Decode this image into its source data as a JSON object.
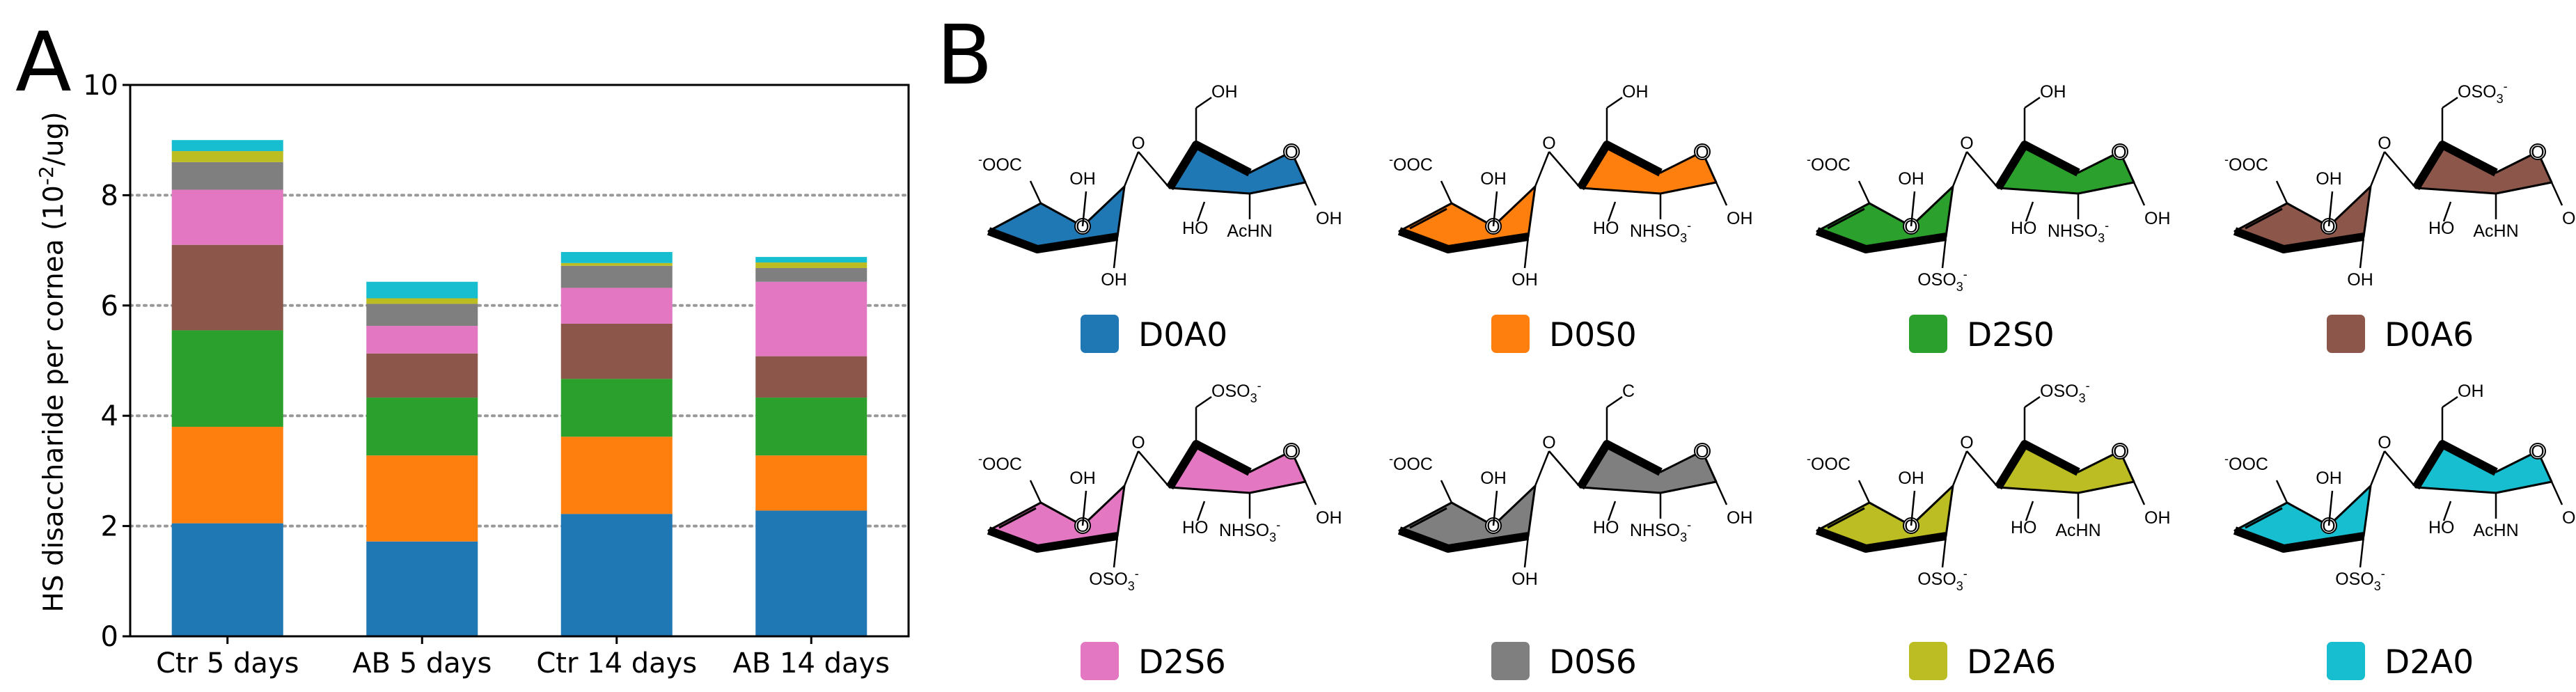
{
  "panels": {
    "a": "A",
    "b": "B"
  },
  "chart_data": {
    "type": "bar",
    "stacked": true,
    "title": "",
    "xlabel": "",
    "ylabel": "HS disaccharide per cornea (10^-2/ug)",
    "ylabel_parts": {
      "pre": "HS disaccharide per cornea (10",
      "sup": "-2",
      "post": "/ug)"
    },
    "ylim": [
      0,
      10
    ],
    "yticks": [
      0,
      2,
      4,
      6,
      8,
      10
    ],
    "gridlines": [
      2,
      4,
      6,
      8
    ],
    "categories": [
      "Ctr 5 days",
      "AB 5 days",
      "Ctr 14 days",
      "AB 14 days"
    ],
    "series": [
      {
        "name": "D0A0",
        "color": "#1f77b4",
        "values": [
          2.05,
          1.72,
          2.22,
          2.28
        ]
      },
      {
        "name": "D0S0",
        "color": "#ff7f0e",
        "values": [
          1.75,
          1.56,
          1.4,
          1.0
        ]
      },
      {
        "name": "D2S0",
        "color": "#2ca02c",
        "values": [
          1.75,
          1.05,
          1.05,
          1.05
        ]
      },
      {
        "name": "D0A6",
        "color": "#8c564b",
        "values": [
          1.55,
          0.8,
          1.0,
          0.75
        ]
      },
      {
        "name": "D2S6",
        "color": "#e377c2",
        "values": [
          1.0,
          0.5,
          0.65,
          1.35
        ]
      },
      {
        "name": "D0S6",
        "color": "#7f7f7f",
        "values": [
          0.5,
          0.4,
          0.4,
          0.25
        ]
      },
      {
        "name": "D2A6",
        "color": "#bcbd22",
        "values": [
          0.2,
          0.1,
          0.05,
          0.1
        ]
      },
      {
        "name": "D2A0",
        "color": "#17becf",
        "values": [
          0.2,
          0.3,
          0.2,
          0.1
        ]
      }
    ]
  },
  "structures": [
    {
      "code": "D0A0",
      "color": "#1f77b4",
      "uronic_acid": "-OOC",
      "c2": "OH",
      "c3": "OH",
      "amine": "AcHN",
      "c6": "OH",
      "unsaturated": false
    },
    {
      "code": "D0S0",
      "color": "#ff7f0e",
      "uronic_acid": "-OOC",
      "c2": "OH",
      "c3": "OH",
      "amine": "NHSO3-",
      "c6": "OH",
      "unsaturated": true
    },
    {
      "code": "D2S0",
      "color": "#2ca02c",
      "uronic_acid": "-OOC",
      "c2": "OSO3-",
      "c3": "OH",
      "amine": "NHSO3-",
      "c6": "OH",
      "unsaturated": true
    },
    {
      "code": "D0A6",
      "color": "#8c564b",
      "uronic_acid": "-OOC",
      "c2": "OH",
      "c3": "OH",
      "amine": "AcHN",
      "c6": "OSO3-",
      "unsaturated": true
    },
    {
      "code": "D2S6",
      "color": "#e377c2",
      "uronic_acid": "-OOC",
      "c2": "OSO3-",
      "c3": "OH",
      "amine": "NHSO3-",
      "c6": "OSO3-",
      "unsaturated": true
    },
    {
      "code": "D0S6",
      "color": "#7f7f7f",
      "uronic_acid": "-OOC",
      "c2": "OH",
      "c3": "OH",
      "amine": "NHSO3-",
      "c6": "C",
      "unsaturated": true
    },
    {
      "code": "D2A6",
      "color": "#bcbd22",
      "uronic_acid": "-OOC",
      "c2": "OSO3-",
      "c3": "OH",
      "amine": "AcHN",
      "c6": "OSO3-",
      "unsaturated": true
    },
    {
      "code": "D2A0",
      "color": "#17becf",
      "uronic_acid": "-OOC",
      "c2": "OSO3-",
      "c3": "OH",
      "amine": "AcHN",
      "c6": "OH",
      "unsaturated": true
    }
  ],
  "chem_labels": {
    "ring_o": "O",
    "hydroxyl_h": "HO",
    "anomeric": "OH"
  }
}
